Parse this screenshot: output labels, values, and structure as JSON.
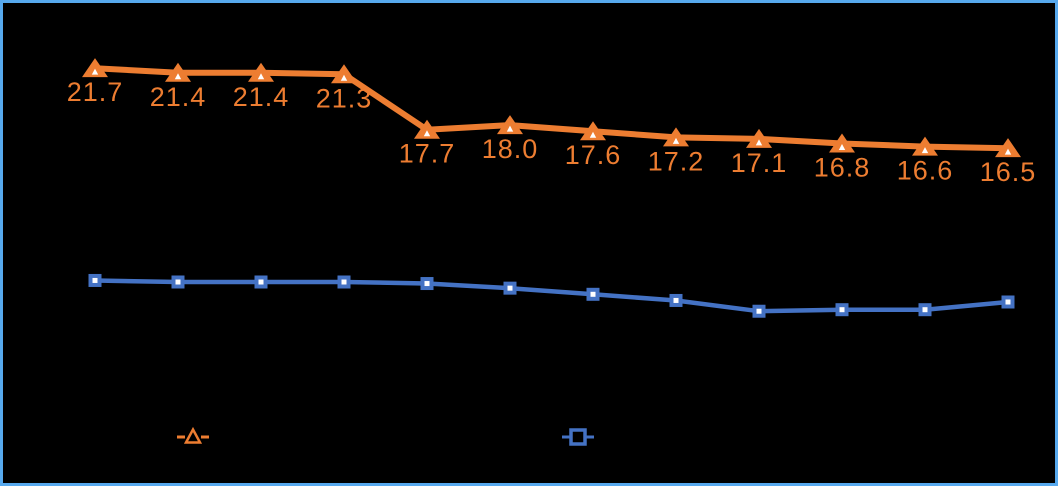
{
  "frame": {
    "background_color": "#000000",
    "border_color": "#57A9EE"
  },
  "chart_data": {
    "type": "line",
    "title": "",
    "xlabel": "",
    "ylabel": "",
    "point_count": 12,
    "x_tick_labels_visible": false,
    "grid": false,
    "ylim": [
      0,
      25
    ],
    "legend_position": "bottom",
    "legend_labels_visible": false,
    "series": [
      {
        "name": "orange-triangle-series",
        "color": "#ED7D31",
        "marker": "triangle",
        "marker_center_color": "#FFFFFF",
        "line_width": 6,
        "values": [
          21.7,
          21.4,
          21.4,
          21.3,
          17.7,
          18.0,
          17.6,
          17.2,
          17.1,
          16.8,
          16.6,
          16.5
        ],
        "data_labels": [
          "21.7",
          "21.4",
          "21.4",
          "21.3",
          "17.7",
          "18.0",
          "17.6",
          "17.2",
          "17.1",
          "16.8",
          "16.6",
          "16.5"
        ],
        "data_labels_visible": true
      },
      {
        "name": "blue-square-series",
        "color": "#4472C4",
        "marker": "square",
        "marker_center_color": "#FFFFFF",
        "line_width": 4.5,
        "values": [
          7.9,
          7.8,
          7.8,
          7.8,
          7.7,
          7.4,
          7.0,
          6.6,
          5.9,
          6.0,
          6.0,
          6.5
        ],
        "data_labels": [],
        "data_labels_visible": false
      }
    ]
  },
  "legend": {
    "items": [
      {
        "series": "orange-triangle-series",
        "marker": "triangle",
        "color": "#ED7D31",
        "label": ""
      },
      {
        "series": "blue-square-series",
        "marker": "square",
        "color": "#4472C4",
        "label": ""
      }
    ]
  }
}
